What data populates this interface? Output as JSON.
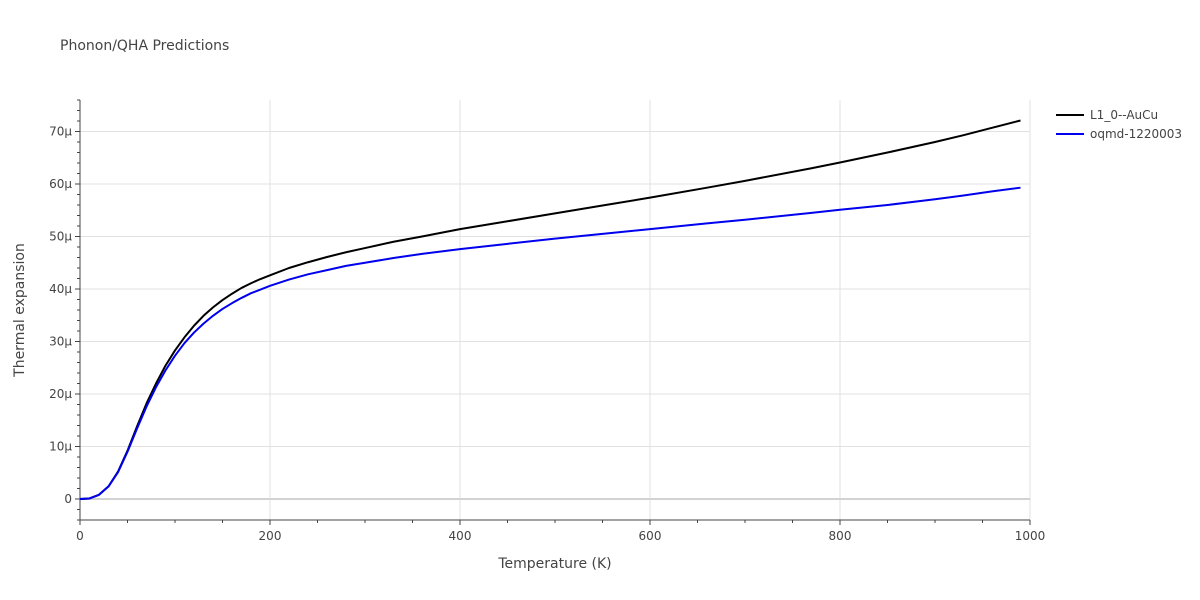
{
  "chart_data": {
    "type": "line",
    "title": "Phonon/QHA Predictions",
    "xlabel": "Temperature (K)",
    "ylabel": "Thermal expansion",
    "xlim": [
      0,
      1000
    ],
    "ylim": [
      -4e-06,
      7.6e-05
    ],
    "grid": true,
    "legend_position": "top-right",
    "x_ticks": [
      {
        "value": 0,
        "label": "0"
      },
      {
        "value": 200,
        "label": "200"
      },
      {
        "value": 400,
        "label": "400"
      },
      {
        "value": 600,
        "label": "600"
      },
      {
        "value": 800,
        "label": "800"
      },
      {
        "value": 1000,
        "label": "1000"
      }
    ],
    "y_ticks": [
      {
        "value": 0,
        "label": "0"
      },
      {
        "value": 1e-05,
        "label": "10μ"
      },
      {
        "value": 2e-05,
        "label": "20μ"
      },
      {
        "value": 3e-05,
        "label": "30μ"
      },
      {
        "value": 4e-05,
        "label": "40μ"
      },
      {
        "value": 5e-05,
        "label": "50μ"
      },
      {
        "value": 6e-05,
        "label": "60μ"
      },
      {
        "value": 7e-05,
        "label": "70μ"
      }
    ],
    "series": [
      {
        "name": "L1_0--AuCu",
        "color": "#000000",
        "x": [
          0,
          10,
          20,
          30,
          40,
          50,
          60,
          70,
          80,
          90,
          100,
          110,
          120,
          130,
          140,
          150,
          160,
          170,
          180,
          190,
          200,
          220,
          240,
          260,
          280,
          300,
          330,
          360,
          400,
          450,
          500,
          550,
          600,
          660,
          700,
          770,
          800,
          850,
          900,
          930,
          960,
          990
        ],
        "y": [
          0,
          1e-07,
          8e-07,
          2.4e-06,
          5.2e-06,
          9.2e-06,
          1.38e-05,
          1.82e-05,
          2.2e-05,
          2.54e-05,
          2.83e-05,
          3.08e-05,
          3.3e-05,
          3.49e-05,
          3.65e-05,
          3.79e-05,
          3.91e-05,
          4.02e-05,
          4.11e-05,
          4.19e-05,
          4.26e-05,
          4.4e-05,
          4.51e-05,
          4.61e-05,
          4.7e-05,
          4.78e-05,
          4.9e-05,
          5e-05,
          5.14e-05,
          5.29e-05,
          5.44e-05,
          5.59e-05,
          5.74e-05,
          5.93e-05,
          6.06e-05,
          6.3e-05,
          6.41e-05,
          6.6e-05,
          6.8e-05,
          6.93e-05,
          7.07e-05,
          7.21e-05
        ]
      },
      {
        "name": "oqmd-1220003",
        "color": "#0000ee",
        "x": [
          0,
          10,
          20,
          30,
          40,
          50,
          60,
          70,
          80,
          90,
          100,
          110,
          120,
          130,
          140,
          150,
          160,
          170,
          180,
          190,
          200,
          220,
          240,
          260,
          280,
          300,
          330,
          360,
          400,
          450,
          500,
          550,
          600,
          660,
          700,
          770,
          800,
          850,
          900,
          930,
          960,
          990
        ],
        "y": [
          0,
          1e-07,
          8e-07,
          2.4e-06,
          5.1e-06,
          9e-06,
          1.34e-05,
          1.76e-05,
          2.13e-05,
          2.45e-05,
          2.73e-05,
          2.97e-05,
          3.17e-05,
          3.34e-05,
          3.49e-05,
          3.62e-05,
          3.73e-05,
          3.83e-05,
          3.92e-05,
          3.99e-05,
          4.06e-05,
          4.18e-05,
          4.28e-05,
          4.36e-05,
          4.44e-05,
          4.5e-05,
          4.59e-05,
          4.67e-05,
          4.76e-05,
          4.86e-05,
          4.96e-05,
          5.05e-05,
          5.14e-05,
          5.25e-05,
          5.32e-05,
          5.45e-05,
          5.51e-05,
          5.6e-05,
          5.71e-05,
          5.78e-05,
          5.86e-05,
          5.93e-05
        ]
      }
    ]
  }
}
